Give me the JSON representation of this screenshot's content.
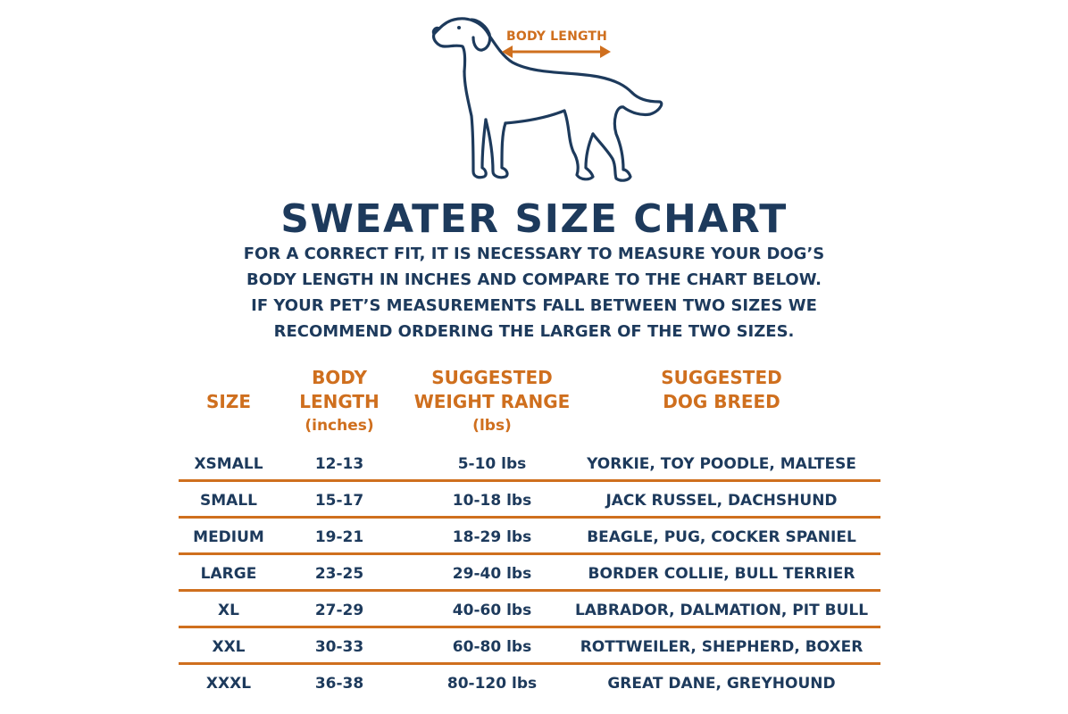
{
  "diagram": {
    "annotation": "BODY LENGTH"
  },
  "title": "SWEATER SIZE CHART",
  "instructions": [
    "FOR A CORRECT FIT, IT IS NECESSARY TO MEASURE YOUR DOG’S",
    "BODY LENGTH IN INCHES AND COMPARE TO THE CHART BELOW.",
    "IF YOUR PET’S MEASUREMENTS FALL BETWEEN TWO SIZES WE",
    "RECOMMEND ORDERING THE LARGER OF THE TWO SIZES."
  ],
  "table": {
    "headers": {
      "size": "SIZE",
      "body_line1": "BODY",
      "body_line2": "LENGTH",
      "body_unit": "(inches)",
      "weight_line1": "SUGGESTED",
      "weight_line2": "WEIGHT RANGE",
      "weight_unit": "(lbs)",
      "breed_line1": "SUGGESTED",
      "breed_line2": "DOG BREED"
    },
    "rows": [
      {
        "size": "XSMALL",
        "length": "12-13",
        "weight": "5-10 lbs",
        "breed": "YORKIE, TOY POODLE, MALTESE"
      },
      {
        "size": "SMALL",
        "length": "15-17",
        "weight": "10-18 lbs",
        "breed": "JACK RUSSEL, DACHSHUND"
      },
      {
        "size": "MEDIUM",
        "length": "19-21",
        "weight": "18-29 lbs",
        "breed": "BEAGLE, PUG, COCKER SPANIEL"
      },
      {
        "size": "LARGE",
        "length": "23-25",
        "weight": "29-40 lbs",
        "breed": "BORDER COLLIE, BULL TERRIER"
      },
      {
        "size": "XL",
        "length": "27-29",
        "weight": "40-60 lbs",
        "breed": "LABRADOR, DALMATION, PIT BULL"
      },
      {
        "size": "XXL",
        "length": "30-33",
        "weight": "60-80 lbs",
        "breed": "ROTTWEILER, SHEPHERD, BOXER"
      },
      {
        "size": "XXXL",
        "length": "36-38",
        "weight": "80-120 lbs",
        "breed": "GREAT DANE, GREYHOUND"
      }
    ]
  },
  "colors": {
    "navy": "#1d3a5c",
    "orange": "#cf6f1e"
  },
  "icons": {
    "dog": "dog-outline-icon",
    "arrow": "double-arrow-icon"
  }
}
